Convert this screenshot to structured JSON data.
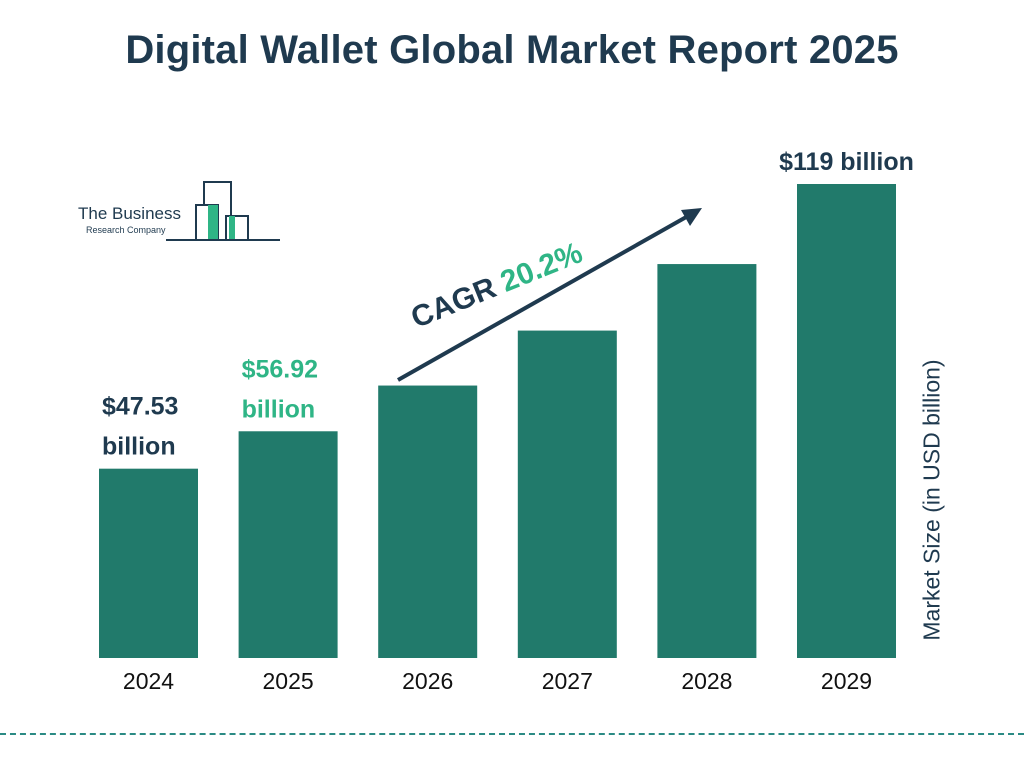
{
  "title": "Digital Wallet Global Market Report 2025",
  "logo": {
    "line1": "The Business",
    "line2": "Research Company"
  },
  "cagr": {
    "label": "CAGR",
    "value": "20.2%"
  },
  "colors": {
    "bar": "#217a6b",
    "title": "#1f3a4f",
    "highlight": "#2fb586",
    "divider": "#2b8a84"
  },
  "chart_data": {
    "type": "bar",
    "categories": [
      "2024",
      "2025",
      "2026",
      "2027",
      "2028",
      "2029"
    ],
    "values": [
      47.53,
      56.92,
      68.4,
      82.2,
      98.9,
      119
    ],
    "ylabel": "Market Size (in USD billion)",
    "xlabel": "",
    "ylim": [
      0,
      119
    ],
    "grid": false,
    "data_labels": [
      {
        "index": 0,
        "lines": [
          "$47.53",
          "billion"
        ],
        "color": "#1f3a4f"
      },
      {
        "index": 1,
        "lines": [
          "$56.92",
          "billion"
        ],
        "color": "#2fb586"
      },
      {
        "index": 5,
        "lines": [
          "$119 billion"
        ],
        "color": "#1f3a4f"
      }
    ]
  }
}
